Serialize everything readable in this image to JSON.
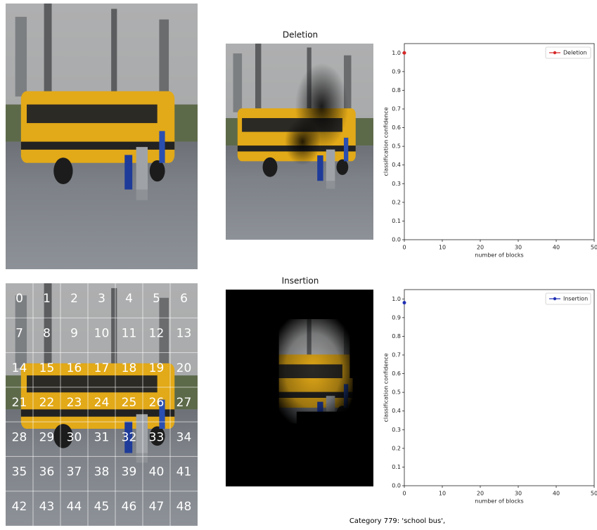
{
  "panels": {
    "deletion_title": "Deletion",
    "insertion_title": "Insertion",
    "grid_labels": [
      0,
      1,
      2,
      3,
      4,
      5,
      6,
      7,
      8,
      9,
      10,
      11,
      12,
      13,
      14,
      15,
      16,
      17,
      18,
      19,
      20,
      21,
      22,
      23,
      24,
      25,
      26,
      27,
      28,
      29,
      30,
      31,
      32,
      33,
      34,
      35,
      36,
      37,
      38,
      39,
      40,
      41,
      42,
      43,
      44,
      45,
      46,
      47,
      48
    ],
    "caption": "Category  779: 'school bus',"
  },
  "chart_data": [
    {
      "type": "line",
      "x_label": "number of blocks",
      "y_label": "classification confidence",
      "series": [
        {
          "name": "Deletion",
          "color": "#d62728",
          "x": [
            0
          ],
          "values": [
            1.0
          ]
        }
      ],
      "xlim": [
        0,
        50
      ],
      "ylim": [
        0,
        1.05
      ],
      "xticks": [
        0,
        10,
        20,
        30,
        40,
        50
      ],
      "yticks": [
        {
          "value": 0,
          "label": "0.0"
        },
        0.1,
        0.2,
        0.3,
        0.4,
        0.5,
        0.6,
        0.7,
        0.8,
        0.9,
        {
          "value": 1,
          "label": "1.0"
        }
      ],
      "legend": "upper right"
    },
    {
      "type": "line",
      "x_label": "number of blocks",
      "y_label": "classification confidence",
      "series": [
        {
          "name": "Insertion",
          "color": "#1f2fb4",
          "x": [
            0
          ],
          "values": [
            0.98
          ]
        }
      ],
      "xlim": [
        0,
        50
      ],
      "ylim": [
        0,
        1.05
      ],
      "xticks": [
        0,
        10,
        20,
        30,
        40,
        50
      ],
      "yticks": [
        {
          "value": 0,
          "label": "0.0"
        },
        0.1,
        0.2,
        0.3,
        0.4,
        0.5,
        0.6,
        0.7,
        0.8,
        0.9,
        {
          "value": 1,
          "label": "1.0"
        }
      ],
      "legend": "upper right"
    }
  ]
}
